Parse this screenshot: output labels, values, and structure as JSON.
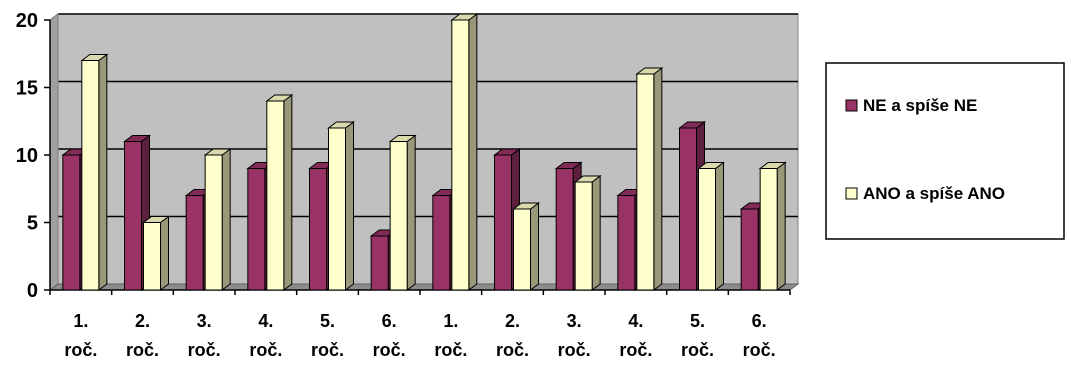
{
  "chart_data": {
    "type": "bar",
    "categories": [
      [
        "1.",
        "roč."
      ],
      [
        "2.",
        "roč."
      ],
      [
        "3.",
        "roč."
      ],
      [
        "4.",
        "roč."
      ],
      [
        "5.",
        "roč."
      ],
      [
        "6.",
        "roč."
      ],
      [
        "1.",
        "roč."
      ],
      [
        "2.",
        "roč."
      ],
      [
        "3.",
        "roč."
      ],
      [
        "4.",
        "roč."
      ],
      [
        "5.",
        "roč."
      ],
      [
        "6.",
        "roč."
      ]
    ],
    "series": [
      {
        "name": "NE a spíše NE",
        "color": "#993366",
        "values": [
          10,
          11,
          7,
          9,
          9,
          4,
          7,
          10,
          9,
          7,
          12,
          6
        ]
      },
      {
        "name": "ANO a spíše ANO",
        "color": "#ffffcc",
        "values": [
          17,
          5,
          10,
          14,
          12,
          11,
          20,
          6,
          8,
          16,
          9,
          9
        ]
      }
    ],
    "ylim": [
      0,
      20
    ],
    "yticks": [
      0,
      5,
      10,
      15,
      20
    ],
    "grid": true,
    "plot_background": "#c0c0c0",
    "legend_position": "right",
    "three_d": true
  }
}
